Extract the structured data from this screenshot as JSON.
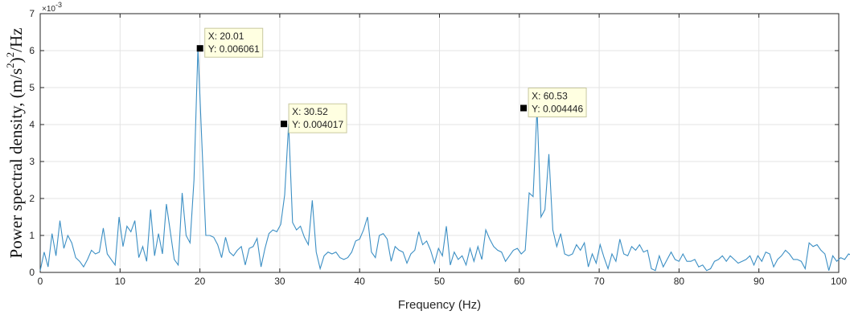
{
  "chart_data": {
    "type": "line",
    "title": "",
    "xlabel": "Frequency (Hz)",
    "ylabel_main": "Power spectral density, (m/s",
    "ylabel_sup": "2",
    "ylabel_tail": ")",
    "ylabel_sup2": "2",
    "ylabel_end": "/Hz",
    "y_exponent_base": "×10",
    "y_exponent_power": "-3",
    "xlim": [
      0,
      100
    ],
    "ylim": [
      0,
      0.007
    ],
    "x_ticks": [
      0,
      10,
      20,
      30,
      40,
      50,
      60,
      70,
      80,
      90,
      100
    ],
    "x_tick_labels": [
      "0",
      "10",
      "20",
      "30",
      "40",
      "50",
      "60",
      "70",
      "80",
      "90",
      "100"
    ],
    "y_ticks": [
      0,
      0.001,
      0.002,
      0.003,
      0.004,
      0.005,
      0.006,
      0.007
    ],
    "y_tick_labels": [
      "0",
      "1",
      "2",
      "3",
      "4",
      "5",
      "6",
      "7"
    ],
    "grid": true,
    "series_color": "#3c8fc4",
    "series": [
      {
        "values_e3": [
          0.05,
          0.55,
          0.15,
          1.05,
          0.45,
          1.4,
          0.65,
          1.0,
          0.8,
          0.4,
          0.3,
          0.15,
          0.35,
          0.6,
          0.5,
          0.55,
          1.2,
          0.5,
          0.35,
          0.2,
          1.5,
          0.7,
          1.25,
          1.1,
          1.4,
          0.4,
          0.7,
          0.3,
          1.7,
          0.45,
          1.05,
          0.5,
          1.85,
          1.1,
          0.35,
          0.2,
          2.15,
          1.0,
          0.8,
          2.5,
          6.061,
          3.5,
          1.0,
          1.0,
          0.95,
          0.75,
          0.4,
          0.95,
          0.55,
          0.45,
          0.6,
          0.7,
          0.2,
          0.65,
          0.7,
          0.92,
          0.15,
          0.65,
          1.05,
          1.15,
          1.1,
          1.3,
          2.1,
          4.017,
          1.35,
          1.15,
          1.25,
          0.95,
          0.75,
          1.95,
          0.55,
          0.1,
          0.45,
          0.55,
          0.5,
          0.55,
          0.4,
          0.35,
          0.4,
          0.55,
          0.85,
          0.9,
          1.15,
          1.5,
          0.55,
          0.4,
          1.0,
          1.05,
          0.9,
          0.3,
          0.7,
          0.6,
          0.55,
          0.25,
          0.5,
          0.6,
          1.1,
          0.75,
          0.85,
          0.6,
          0.25,
          0.65,
          0.45,
          1.25,
          0.2,
          0.55,
          0.35,
          0.45,
          0.2,
          0.65,
          0.3,
          0.7,
          0.35,
          1.15,
          0.9,
          0.7,
          0.6,
          0.55,
          0.3,
          0.45,
          0.6,
          0.65,
          0.5,
          0.6,
          2.15,
          2.05,
          4.446,
          1.5,
          1.7,
          3.2,
          1.15,
          0.7,
          1.05,
          0.5,
          0.45,
          0.5,
          0.75,
          0.6,
          0.8,
          0.15,
          0.5,
          0.25,
          0.75,
          0.4,
          0.1,
          0.5,
          0.3,
          0.9,
          0.5,
          0.45,
          0.7,
          0.6,
          0.75,
          0.55,
          0.6,
          0.1,
          0.05,
          0.45,
          0.15,
          0.35,
          0.55,
          0.35,
          0.3,
          0.5,
          0.3,
          0.3,
          0.35,
          0.15,
          0.2,
          0.05,
          0.1,
          0.3,
          0.35,
          0.45,
          0.3,
          0.45,
          0.35,
          0.25,
          0.3,
          0.35,
          0.45,
          0.2,
          0.45,
          0.3,
          0.55,
          0.5,
          0.15,
          0.35,
          0.45,
          0.6,
          0.5,
          0.35,
          0.35,
          0.3,
          0.1,
          0.8,
          0.7,
          0.75,
          0.6,
          0.5,
          0.05,
          0.45,
          0.3,
          0.4,
          0.35,
          0.5,
          0.45,
          0.2,
          0.65,
          0.5,
          0.35,
          0.8,
          0.95,
          0.65,
          0.6
        ],
        "x_start": 0,
        "x_step": 0.4938
      }
    ],
    "annotations": [
      {
        "x": 20.01,
        "y": 0.006061,
        "x_text": "X: 20.01",
        "y_text": "Y: 0.006061"
      },
      {
        "x": 30.52,
        "y": 0.004017,
        "x_text": "X: 30.52",
        "y_text": "Y: 0.004017"
      },
      {
        "x": 60.53,
        "y": 0.004446,
        "x_text": "X: 60.53",
        "y_text": "Y: 0.004446"
      }
    ],
    "datatip_fill": "#ffffe1",
    "datatip_border": "#c8c8a0"
  }
}
